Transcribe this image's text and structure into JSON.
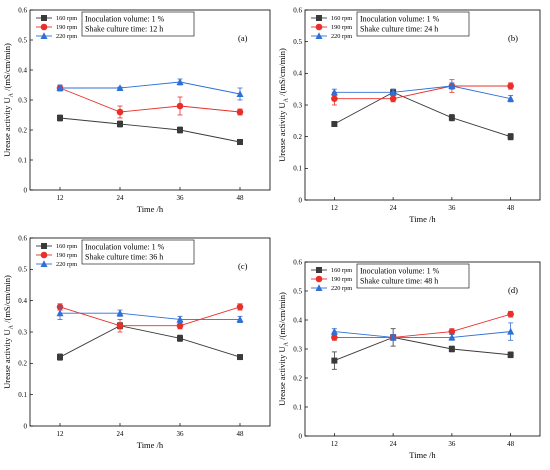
{
  "chart_data": [
    {
      "type": "line",
      "panel_label": "(a)",
      "annotation": [
        "Inoculation volume: 1 %",
        "Shake culture time: 12 h"
      ],
      "x": [
        12,
        24,
        36,
        48
      ],
      "xticks": [
        "12",
        "24",
        "36",
        "48"
      ],
      "xlabel": "Time /h",
      "ylabel": "Urease activity U_A /(mS/cm/min)",
      "ylim": [
        0,
        0.6
      ],
      "yticks": [
        "0",
        "0.1",
        "0.2",
        "0.3",
        "0.4",
        "0.5",
        "0.6"
      ],
      "legend_position": "top-left",
      "series": [
        {
          "name": "160 rpm",
          "color": "#3a3a3a",
          "marker": "square",
          "values": [
            0.24,
            0.22,
            0.2,
            0.16
          ],
          "errors": [
            0.01,
            0.01,
            0.01,
            0.003
          ]
        },
        {
          "name": "190 rpm",
          "color": "#e8302a",
          "marker": "circle",
          "values": [
            0.34,
            0.26,
            0.28,
            0.26
          ],
          "errors": [
            0.01,
            0.02,
            0.03,
            0.01
          ]
        },
        {
          "name": "220 rpm",
          "color": "#2f6fd6",
          "marker": "triangle",
          "values": [
            0.34,
            0.34,
            0.36,
            0.32
          ],
          "errors": [
            0.01,
            0.003,
            0.01,
            0.02
          ]
        }
      ]
    },
    {
      "type": "line",
      "panel_label": "(b)",
      "annotation": [
        "Inoculation volume: 1 %",
        "Shake culture time: 24 h"
      ],
      "x": [
        12,
        24,
        36,
        48
      ],
      "xticks": [
        "12",
        "24",
        "36",
        "48"
      ],
      "xlabel": "Time /h",
      "ylabel": "Urease activity U_A /(mS/cm/min)",
      "ylim": [
        0,
        0.6
      ],
      "yticks": [
        "0",
        "0.1",
        "0.2",
        "0.3",
        "0.4",
        "0.5",
        "0.6"
      ],
      "legend_position": "top-left",
      "series": [
        {
          "name": "160 rpm",
          "color": "#3a3a3a",
          "marker": "square",
          "values": [
            0.24,
            0.34,
            0.26,
            0.2
          ],
          "errors": [
            0.003,
            0.01,
            0.01,
            0.01
          ]
        },
        {
          "name": "190 rpm",
          "color": "#e8302a",
          "marker": "circle",
          "values": [
            0.32,
            0.32,
            0.36,
            0.36
          ],
          "errors": [
            0.02,
            0.01,
            0.02,
            0.01
          ]
        },
        {
          "name": "220 rpm",
          "color": "#2f6fd6",
          "marker": "triangle",
          "values": [
            0.34,
            0.34,
            0.36,
            0.32
          ],
          "errors": [
            0.01,
            0.01,
            0.01,
            0.01
          ]
        }
      ]
    },
    {
      "type": "line",
      "panel_label": "(c)",
      "annotation": [
        "Inoculation volume: 1 %",
        "Shake culture time: 36 h"
      ],
      "x": [
        12,
        24,
        36,
        48
      ],
      "xticks": [
        "12",
        "24",
        "36",
        "48"
      ],
      "xlabel": "Time /h",
      "ylabel": "Urease activity U_A /(mS/cm/min)",
      "ylim": [
        0,
        0.6
      ],
      "yticks": [
        "0",
        "0.1",
        "0.2",
        "0.3",
        "0.4",
        "0.5",
        "0.6"
      ],
      "legend_position": "top-left",
      "series": [
        {
          "name": "160 rpm",
          "color": "#3a3a3a",
          "marker": "square",
          "values": [
            0.22,
            0.32,
            0.28,
            0.22
          ],
          "errors": [
            0.01,
            0.01,
            0.01,
            0.003
          ]
        },
        {
          "name": "190 rpm",
          "color": "#e8302a",
          "marker": "circle",
          "values": [
            0.38,
            0.32,
            0.32,
            0.38
          ],
          "errors": [
            0.01,
            0.02,
            0.01,
            0.01
          ]
        },
        {
          "name": "220 rpm",
          "color": "#2f6fd6",
          "marker": "triangle",
          "values": [
            0.36,
            0.36,
            0.34,
            0.34
          ],
          "errors": [
            0.02,
            0.01,
            0.01,
            0.01
          ]
        }
      ]
    },
    {
      "type": "line",
      "panel_label": "(d)",
      "annotation": [
        "Inoculation volume: 1 %",
        "Shake culture time: 48 h"
      ],
      "x": [
        12,
        24,
        36,
        48
      ],
      "xticks": [
        "12",
        "24",
        "36",
        "48"
      ],
      "xlabel": "Time /h",
      "ylabel": "Urease activity U_A /(mS/cm/min)",
      "ylim": [
        0,
        0.6
      ],
      "yticks": [
        "0",
        "0.1",
        "0.2",
        "0.3",
        "0.4",
        "0.5",
        "0.6"
      ],
      "legend_position": "top-left",
      "series": [
        {
          "name": "160 rpm",
          "color": "#3a3a3a",
          "marker": "square",
          "values": [
            0.26,
            0.34,
            0.3,
            0.28
          ],
          "errors": [
            0.03,
            0.03,
            0.01,
            0.01
          ]
        },
        {
          "name": "190 rpm",
          "color": "#e8302a",
          "marker": "circle",
          "values": [
            0.34,
            0.34,
            0.36,
            0.42
          ],
          "errors": [
            0.01,
            0.01,
            0.01,
            0.01
          ]
        },
        {
          "name": "220 rpm",
          "color": "#2f6fd6",
          "marker": "triangle",
          "values": [
            0.36,
            0.34,
            0.34,
            0.36
          ],
          "errors": [
            0.01,
            0.01,
            0.01,
            0.03
          ]
        }
      ]
    }
  ]
}
